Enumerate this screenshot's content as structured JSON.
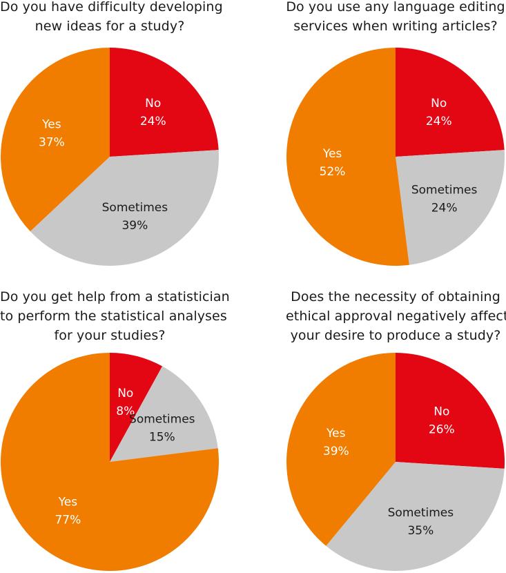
{
  "colors": {
    "No": "#e30613",
    "Sometimes": "#c8c8c8",
    "Yes": "#f07d00"
  },
  "chart_data": [
    {
      "type": "pie",
      "title_lines": [
        "Do you have difficulty developing",
        "new ideas for a study?"
      ],
      "slices": [
        {
          "label": "No",
          "value": 24,
          "value_label": "24%"
        },
        {
          "label": "Sometimes",
          "value": 39,
          "value_label": "39%"
        },
        {
          "label": "Yes",
          "value": 37,
          "value_label": "37%"
        }
      ]
    },
    {
      "type": "pie",
      "title_lines": [
        "Do you use any language editing",
        "services when writing articles?"
      ],
      "slices": [
        {
          "label": "No",
          "value": 24,
          "value_label": "24%"
        },
        {
          "label": "Sometimes",
          "value": 24,
          "value_label": "24%"
        },
        {
          "label": "Yes",
          "value": 52,
          "value_label": "52%"
        }
      ]
    },
    {
      "type": "pie",
      "title_lines": [
        "Do you get help from a statistician",
        "to perform the statistical analyses",
        "for your studies?"
      ],
      "slices": [
        {
          "label": "No",
          "value": 8,
          "value_label": "8%"
        },
        {
          "label": "Sometimes",
          "value": 15,
          "value_label": "15%"
        },
        {
          "label": "Yes",
          "value": 77,
          "value_label": "77%"
        }
      ]
    },
    {
      "type": "pie",
      "title_lines": [
        "Does the necessity of obtaining",
        "ethical approval negatively affect",
        "your desire to produce a study?"
      ],
      "slices": [
        {
          "label": "No",
          "value": 26,
          "value_label": "26%"
        },
        {
          "label": "Sometimes",
          "value": 35,
          "value_label": "35%"
        },
        {
          "label": "Yes",
          "value": 39,
          "value_label": "39%"
        }
      ]
    }
  ]
}
